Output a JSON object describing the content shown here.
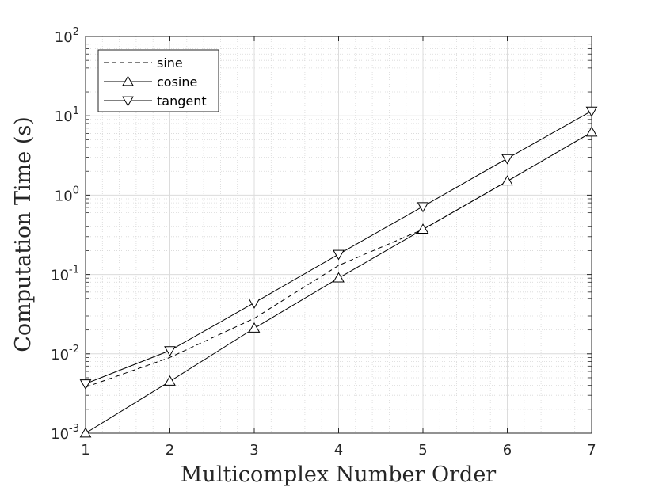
{
  "chart_data": {
    "type": "line",
    "xlabel": "Multicomplex Number Order",
    "ylabel": "Computation Time (s)",
    "xlim": [
      1,
      7
    ],
    "ylim": [
      0.001,
      100
    ],
    "y_scale": "log",
    "grid": true,
    "minor_grid": true,
    "legend_position": "top-left",
    "x_ticks": [
      "1",
      "2",
      "3",
      "4",
      "5",
      "6",
      "7"
    ],
    "y_ticks": [
      {
        "base": "10",
        "exp": "-3"
      },
      {
        "base": "10",
        "exp": "-2"
      },
      {
        "base": "10",
        "exp": "-1"
      },
      {
        "base": "10",
        "exp": "0"
      },
      {
        "base": "10",
        "exp": "1"
      },
      {
        "base": "10",
        "exp": "2"
      }
    ],
    "x": [
      1,
      2,
      3,
      4,
      5,
      6,
      7
    ],
    "series": [
      {
        "name": "sine",
        "style": "dashed",
        "marker": "none",
        "values": [
          0.0038,
          0.009,
          0.028,
          0.13,
          0.37,
          1.5,
          6.2
        ]
      },
      {
        "name": "cosine",
        "style": "solid",
        "marker": "triangle-up",
        "values": [
          0.001,
          0.0045,
          0.021,
          0.09,
          0.37,
          1.5,
          6.2
        ]
      },
      {
        "name": "tangent",
        "style": "solid",
        "marker": "triangle-down",
        "values": [
          0.0042,
          0.011,
          0.044,
          0.18,
          0.72,
          2.9,
          11.5
        ]
      }
    ]
  }
}
